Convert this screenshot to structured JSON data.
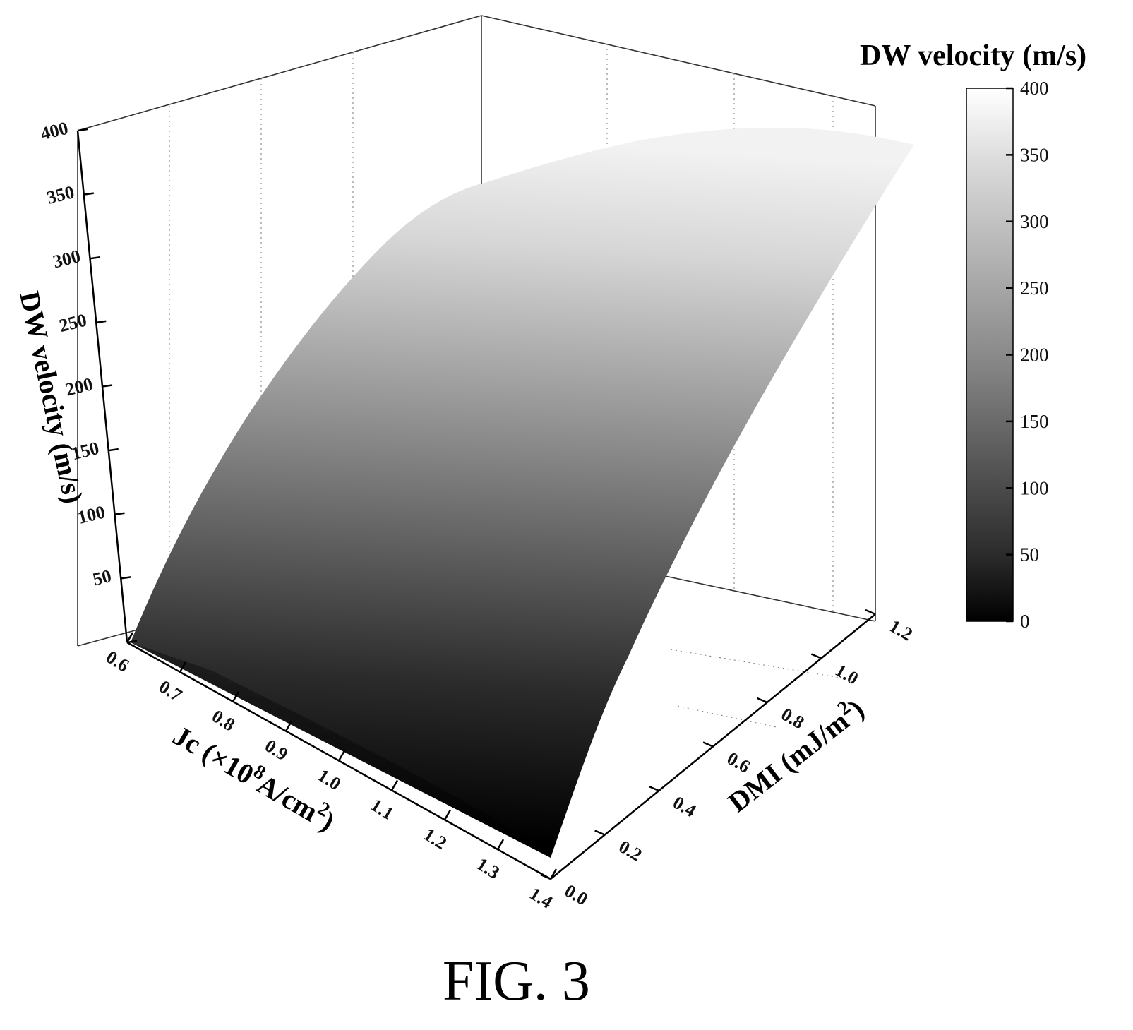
{
  "figure_caption": "FIG. 3",
  "chart_data": {
    "type": "surface",
    "z_label": "DW velocity (m/s)",
    "x_label_main": "Jc (×10",
    "x_label_sup8": "8",
    "x_label_unit": "A/cm",
    "x_label_sup2": "2",
    "x_label_close": ")",
    "y_label_main": "DMI (mJ/m",
    "y_label_sup": "2",
    "y_label_close": ")",
    "colorbar_title": "DW velocity (m/s)",
    "x_range": [
      0.6,
      1.4
    ],
    "y_range": [
      0.0,
      1.2
    ],
    "z_range": [
      0,
      400
    ],
    "x_ticks": [
      "0.6",
      "0.7",
      "0.8",
      "0.9",
      "1.0",
      "1.1",
      "1.2",
      "1.3",
      "1.4"
    ],
    "y_ticks": [
      "0.0",
      "0.2",
      "0.4",
      "0.6",
      "0.8",
      "1.0",
      "1.2"
    ],
    "z_ticks": [
      "0",
      "50",
      "100",
      "150",
      "200",
      "250",
      "300",
      "350",
      "400"
    ],
    "colorbar_ticks": [
      "0",
      "50",
      "100",
      "150",
      "200",
      "250",
      "300",
      "350",
      "400"
    ],
    "colormap": [
      "#000000",
      "#ffffff"
    ],
    "surface_ridge": {
      "dmi": [
        0.0,
        0.2,
        0.4,
        0.6,
        0.8,
        1.0,
        1.2
      ],
      "velocity_at_jc_min": [
        0,
        104,
        203,
        278,
        334,
        369,
        380
      ],
      "velocity_at_jc_max": [
        0,
        75,
        153,
        235,
        306,
        352,
        370
      ]
    }
  }
}
